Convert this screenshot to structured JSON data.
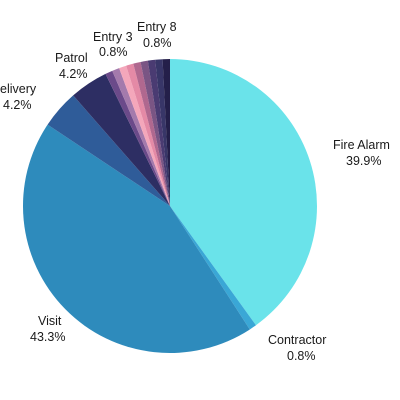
{
  "chart_data": {
    "type": "pie",
    "title": "",
    "slices": [
      {
        "label": "Fire Alarm",
        "value": 39.9,
        "value_text": "39.9%",
        "color": "#6ae3ea"
      },
      {
        "label": "Contractor",
        "value": 0.8,
        "value_text": "0.8%",
        "color": "#3aa7d6"
      },
      {
        "label": "Visit",
        "value": 43.3,
        "value_text": "43.3%",
        "color": "#2e8bbc"
      },
      {
        "label": "Delivery",
        "value": 4.2,
        "value_text": "4.2%",
        "color": "#2f5c99"
      },
      {
        "label": "Patrol",
        "value": 4.2,
        "value_text": "4.2%",
        "color": "#2d2e63"
      },
      {
        "label": "",
        "value": 0.8,
        "value_text": "",
        "color": "#6b4a8a"
      },
      {
        "label": "",
        "value": 0.8,
        "value_text": "",
        "color": "#a47aac"
      },
      {
        "label": "Entry 3",
        "value": 0.8,
        "value_text": "0.8%",
        "color": "#f4a7bb"
      },
      {
        "label": "",
        "value": 0.8,
        "value_text": "",
        "color": "#e48aa6"
      },
      {
        "label": "",
        "value": 0.8,
        "value_text": "",
        "color": "#b0688f"
      },
      {
        "label": "",
        "value": 0.8,
        "value_text": "",
        "color": "#7a5584"
      },
      {
        "label": "",
        "value": 0.8,
        "value_text": "",
        "color": "#4a3b72"
      },
      {
        "label": "",
        "value": 0.8,
        "value_text": "",
        "color": "#383668"
      },
      {
        "label": "Entry 8",
        "value": 0.8,
        "value_text": "0.8%",
        "color": "#241f4a"
      }
    ],
    "labels": {
      "fire_alarm": {
        "name": "Fire Alarm",
        "pct": "39.9%"
      },
      "contractor": {
        "name": "Contractor",
        "pct": "0.8%"
      },
      "visit": {
        "name": "Visit",
        "pct": "43.3%"
      },
      "delivery": {
        "name": "elivery",
        "pct": "4.2%"
      },
      "patrol": {
        "name": "Patrol",
        "pct": "4.2%"
      },
      "entry3": {
        "name": "Entry 3",
        "pct": "0.8%"
      },
      "entry8": {
        "name": "Entry 8",
        "pct": "0.8%"
      }
    }
  }
}
